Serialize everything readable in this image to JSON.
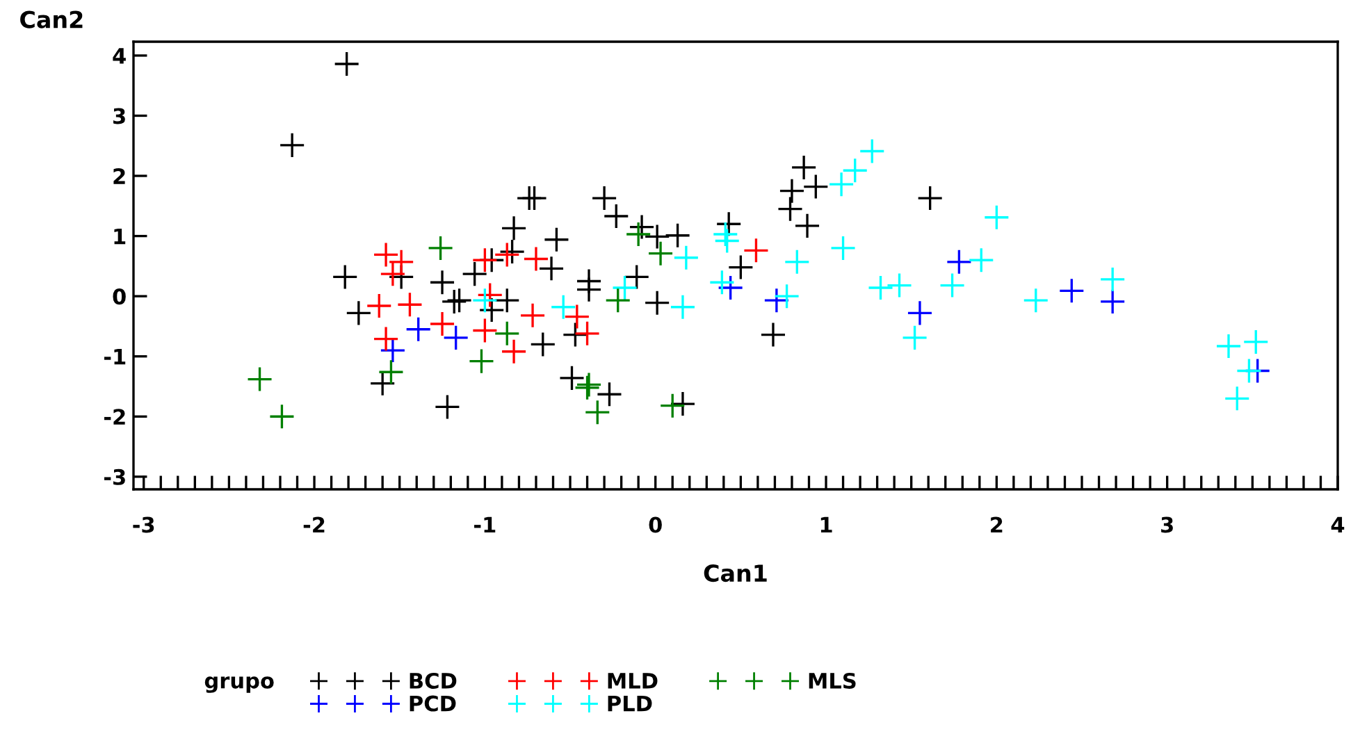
{
  "chart_data": {
    "type": "scatter",
    "xlabel": "Can1",
    "ylabel": "Can2",
    "legend_title": "grupo",
    "legend": "bottom",
    "marker": "cross",
    "grid": false,
    "xlim": [
      -3.06,
      4.0
    ],
    "ylim": [
      -3.21,
      4.23
    ],
    "xticks": [
      -3,
      {
        "value": -2.9,
        "label": null
      },
      {
        "value": -2.8,
        "label": null
      },
      {
        "value": -2.7,
        "label": null
      },
      {
        "value": -2.6,
        "label": null
      },
      {
        "value": -2.5,
        "label": null
      },
      {
        "value": -2.4,
        "label": null
      },
      {
        "value": -2.3,
        "label": null
      },
      {
        "value": -2.2,
        "label": null
      },
      {
        "value": -2.1,
        "label": null
      },
      -2,
      {
        "value": -1.9,
        "label": null
      },
      {
        "value": -1.8,
        "label": null
      },
      {
        "value": -1.7,
        "label": null
      },
      {
        "value": -1.6,
        "label": null
      },
      {
        "value": -1.5,
        "label": null
      },
      {
        "value": -1.4,
        "label": null
      },
      {
        "value": -1.3,
        "label": null
      },
      {
        "value": -1.2,
        "label": null
      },
      {
        "value": -1.1,
        "label": null
      },
      -1,
      {
        "value": -0.9,
        "label": null
      },
      {
        "value": -0.8,
        "label": null
      },
      {
        "value": -0.7,
        "label": null
      },
      {
        "value": -0.6,
        "label": null
      },
      {
        "value": -0.5,
        "label": null
      },
      {
        "value": -0.4,
        "label": null
      },
      {
        "value": -0.3,
        "label": null
      },
      {
        "value": -0.2,
        "label": null
      },
      {
        "value": -0.1,
        "label": null
      },
      0,
      {
        "value": 0.1,
        "label": null
      },
      {
        "value": 0.2,
        "label": null
      },
      {
        "value": 0.3,
        "label": null
      },
      {
        "value": 0.4,
        "label": null
      },
      {
        "value": 0.5,
        "label": null
      },
      {
        "value": 0.6,
        "label": null
      },
      {
        "value": 0.7,
        "label": null
      },
      {
        "value": 0.8,
        "label": null
      },
      {
        "value": 0.9,
        "label": null
      },
      1,
      {
        "value": 1.1,
        "label": null
      },
      {
        "value": 1.2,
        "label": null
      },
      {
        "value": 1.3,
        "label": null
      },
      {
        "value": 1.4,
        "label": null
      },
      {
        "value": 1.5,
        "label": null
      },
      {
        "value": 1.6,
        "label": null
      },
      {
        "value": 1.7,
        "label": null
      },
      {
        "value": 1.8,
        "label": null
      },
      {
        "value": 1.9,
        "label": null
      },
      2,
      {
        "value": 2.1,
        "label": null
      },
      {
        "value": 2.2,
        "label": null
      },
      {
        "value": 2.3,
        "label": null
      },
      {
        "value": 2.4,
        "label": null
      },
      {
        "value": 2.5,
        "label": null
      },
      {
        "value": 2.6,
        "label": null
      },
      {
        "value": 2.7,
        "label": null
      },
      {
        "value": 2.8,
        "label": null
      },
      {
        "value": 2.9,
        "label": null
      },
      3,
      {
        "value": 3.1,
        "label": null
      },
      {
        "value": 3.2,
        "label": null
      },
      {
        "value": 3.3,
        "label": null
      },
      {
        "value": 3.4,
        "label": null
      },
      {
        "value": 3.5,
        "label": null
      },
      {
        "value": 3.6,
        "label": null
      },
      {
        "value": 3.7,
        "label": null
      },
      {
        "value": 3.8,
        "label": null
      },
      {
        "value": 3.9,
        "label": null
      },
      4
    ],
    "yticks": [
      -3,
      -2,
      -1,
      0,
      1,
      2,
      3,
      4
    ],
    "series": [
      {
        "name": "BCD",
        "color": "#000000",
        "x": [
          -1.81,
          -2.13,
          -1.82,
          -1.74,
          -1.49,
          -1.6,
          -1.25,
          -1.22,
          -1.18,
          -0.71,
          -0.74,
          -0.83,
          -0.84,
          -0.96,
          -1.06,
          -0.58,
          -0.61,
          -1.15,
          -0.87,
          -0.96,
          -0.66,
          -0.3,
          -0.23,
          -0.39,
          -0.39,
          -0.47,
          -0.49,
          -0.27,
          -0.08,
          0.01,
          0.13,
          -0.11,
          0.01,
          0.43,
          0.5,
          0.69,
          0.16,
          0.87,
          0.8,
          0.94,
          0.79,
          0.89,
          1.61
        ],
        "values": [
          3.86,
          2.51,
          0.32,
          -0.28,
          0.32,
          -1.45,
          0.23,
          -1.84,
          -0.09,
          1.63,
          1.63,
          1.13,
          0.74,
          0.6,
          0.37,
          0.94,
          0.46,
          -0.07,
          -0.07,
          -0.23,
          -0.8,
          1.63,
          1.33,
          0.25,
          0.11,
          -0.64,
          -1.36,
          -1.63,
          1.15,
          0.99,
          1.01,
          0.32,
          -0.11,
          1.2,
          0.48,
          -0.64,
          -1.79,
          2.14,
          1.75,
          1.82,
          1.45,
          1.17,
          1.63
        ]
      },
      {
        "name": "PCD",
        "color": "#0000ff",
        "x": [
          -1.39,
          -1.54,
          -1.17,
          0.44,
          0.71,
          1.78,
          1.55,
          2.44,
          2.68,
          3.53
        ],
        "values": [
          -0.55,
          -0.9,
          -0.69,
          0.14,
          -0.07,
          0.57,
          -0.28,
          0.09,
          -0.09,
          -1.24
        ]
      },
      {
        "name": "MLD",
        "color": "#ff0000",
        "x": [
          -1.58,
          -1.49,
          -1.54,
          -1.62,
          -1.44,
          -1.58,
          -1.25,
          -1.0,
          -0.87,
          -0.7,
          -0.97,
          -0.72,
          -1.0,
          -0.83,
          -0.46,
          -0.4,
          0.59
        ],
        "values": [
          0.69,
          0.57,
          0.37,
          -0.16,
          -0.14,
          -0.71,
          -0.46,
          0.6,
          0.69,
          0.62,
          0.02,
          -0.32,
          -0.57,
          -0.92,
          -0.34,
          -0.62,
          0.76
        ]
      },
      {
        "name": "PLD",
        "color": "#00ffff",
        "x": [
          -1.0,
          -0.54,
          -0.18,
          0.18,
          0.16,
          0.41,
          0.42,
          0.39,
          1.27,
          1.17,
          1.09,
          1.1,
          0.83,
          0.77,
          1.32,
          1.43,
          1.52,
          1.74,
          1.91,
          2.0,
          2.23,
          2.68,
          3.36,
          3.52,
          3.48,
          3.41
        ],
        "values": [
          -0.07,
          -0.18,
          0.14,
          0.64,
          -0.18,
          1.03,
          0.92,
          0.23,
          2.41,
          2.09,
          1.86,
          0.8,
          0.57,
          0.0,
          0.14,
          0.18,
          -0.69,
          0.18,
          0.6,
          1.31,
          -0.07,
          0.28,
          -0.83,
          -0.76,
          -1.24,
          -1.7
        ]
      },
      {
        "name": "MLS",
        "color": "#008000",
        "x": [
          -1.26,
          -1.55,
          -2.32,
          -2.19,
          -1.02,
          -0.87,
          -0.22,
          -0.1,
          0.03,
          -0.39,
          -0.4,
          -0.34,
          0.1
        ],
        "values": [
          0.8,
          -1.26,
          -1.38,
          -2.0,
          -1.08,
          -0.62,
          -0.07,
          1.03,
          0.71,
          -1.47,
          -1.52,
          -1.93,
          -1.82
        ]
      }
    ]
  }
}
